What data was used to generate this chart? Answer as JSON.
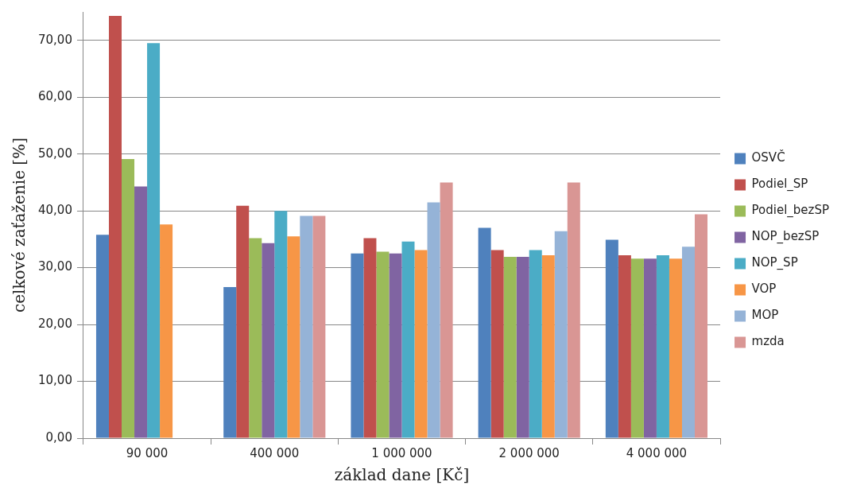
{
  "chart_data": {
    "type": "bar",
    "xlabel": "základ dane [Kč]",
    "ylabel": "celkové zaťaženie [%]",
    "categories": [
      "90 000",
      "400 000",
      "1 000 000",
      "2 000 000",
      "4 000 000"
    ],
    "series": [
      {
        "name": "OSVČ",
        "color": "#4f81bd",
        "values": [
          35.8,
          26.6,
          32.5,
          37.0,
          34.9
        ]
      },
      {
        "name": "Podiel_SP",
        "color": "#c0504d",
        "values": [
          74.3,
          40.9,
          35.2,
          33.1,
          32.2
        ]
      },
      {
        "name": "Podiel_bezSP",
        "color": "#9bbb59",
        "values": [
          49.1,
          35.2,
          32.8,
          31.9,
          31.6
        ]
      },
      {
        "name": "NOP_bezSP",
        "color": "#8064a2",
        "values": [
          44.3,
          34.3,
          32.5,
          31.9,
          31.6
        ]
      },
      {
        "name": "NOP_SP",
        "color": "#4bacc6",
        "values": [
          69.5,
          40.0,
          34.6,
          33.1,
          32.2
        ]
      },
      {
        "name": "VOP",
        "color": "#f79646",
        "values": [
          37.6,
          35.5,
          33.1,
          32.2,
          31.6
        ]
      },
      {
        "name": "MOP",
        "color": "#95b3d7",
        "values": [
          null,
          39.1,
          41.5,
          36.4,
          33.7
        ]
      },
      {
        "name": "mzda",
        "color": "#d99694",
        "values": [
          null,
          39.1,
          45.0,
          45.0,
          39.4
        ]
      }
    ],
    "ylim": [
      0,
      75
    ],
    "yticks": [
      {
        "value": 0,
        "label": "0,00"
      },
      {
        "value": 10,
        "label": "10,00"
      },
      {
        "value": 20,
        "label": "20,00"
      },
      {
        "value": 30,
        "label": "30,00"
      },
      {
        "value": 40,
        "label": "40,00"
      },
      {
        "value": 50,
        "label": "50,00"
      },
      {
        "value": 60,
        "label": "60,00"
      },
      {
        "value": 70,
        "label": "70,00"
      }
    ],
    "grid": "y",
    "legend": "right"
  }
}
